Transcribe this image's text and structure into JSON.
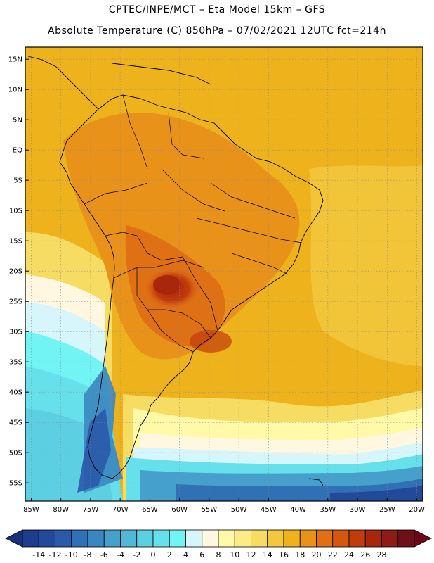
{
  "header": {
    "title_line1": "CPTEC/INPE/MCT –  Eta Model 15km – GFS",
    "title_line2": "Absolute Temperature (C) 850hPa – 07/02/2021 12UTC fct=214h"
  },
  "map": {
    "lat_labels": [
      "15N",
      "10N",
      "5N",
      "EQ",
      "5S",
      "10S",
      "15S",
      "20S",
      "25S",
      "30S",
      "35S",
      "40S",
      "45S",
      "50S",
      "55S"
    ],
    "lat_values": [
      15,
      10,
      5,
      0,
      -5,
      -10,
      -15,
      -20,
      -25,
      -30,
      -35,
      -40,
      -45,
      -50,
      -55
    ],
    "lon_labels": [
      "85W",
      "80W",
      "75W",
      "70W",
      "65W",
      "60W",
      "55W",
      "50W",
      "45W",
      "40W",
      "35W",
      "30W",
      "25W",
      "20W"
    ],
    "lon_values": [
      -85,
      -80,
      -75,
      -70,
      -65,
      -60,
      -55,
      -50,
      -45,
      -40,
      -35,
      -30,
      -25,
      -20
    ],
    "lat_range": [
      -58,
      17
    ],
    "lon_range": [
      -86,
      -19
    ]
  },
  "colorbar": {
    "labels": [
      "-14",
      "-12",
      "-10",
      "-8",
      "-6",
      "-4",
      "-2",
      "0",
      "2",
      "4",
      "6",
      "8",
      "10",
      "12",
      "14",
      "16",
      "18",
      "20",
      "22",
      "24",
      "26",
      "28"
    ],
    "colors": [
      "#1e3c8c",
      "#234a9a",
      "#2a5aa8",
      "#3070b4",
      "#3a86c0",
      "#45a0cc",
      "#52b8d8",
      "#5ccfe3",
      "#66e1ec",
      "#72f4f4",
      "#d7f6fb",
      "#fff7e0",
      "#fff9a8",
      "#fbec88",
      "#f7dc64",
      "#f2c83e",
      "#eeb21c",
      "#e8921a",
      "#e07014",
      "#d4560f",
      "#c03c0c",
      "#a8260a",
      "#8c1c14",
      "#6e1018"
    ],
    "under_color": "#1a2f7a",
    "over_color": "#6a0818"
  }
}
